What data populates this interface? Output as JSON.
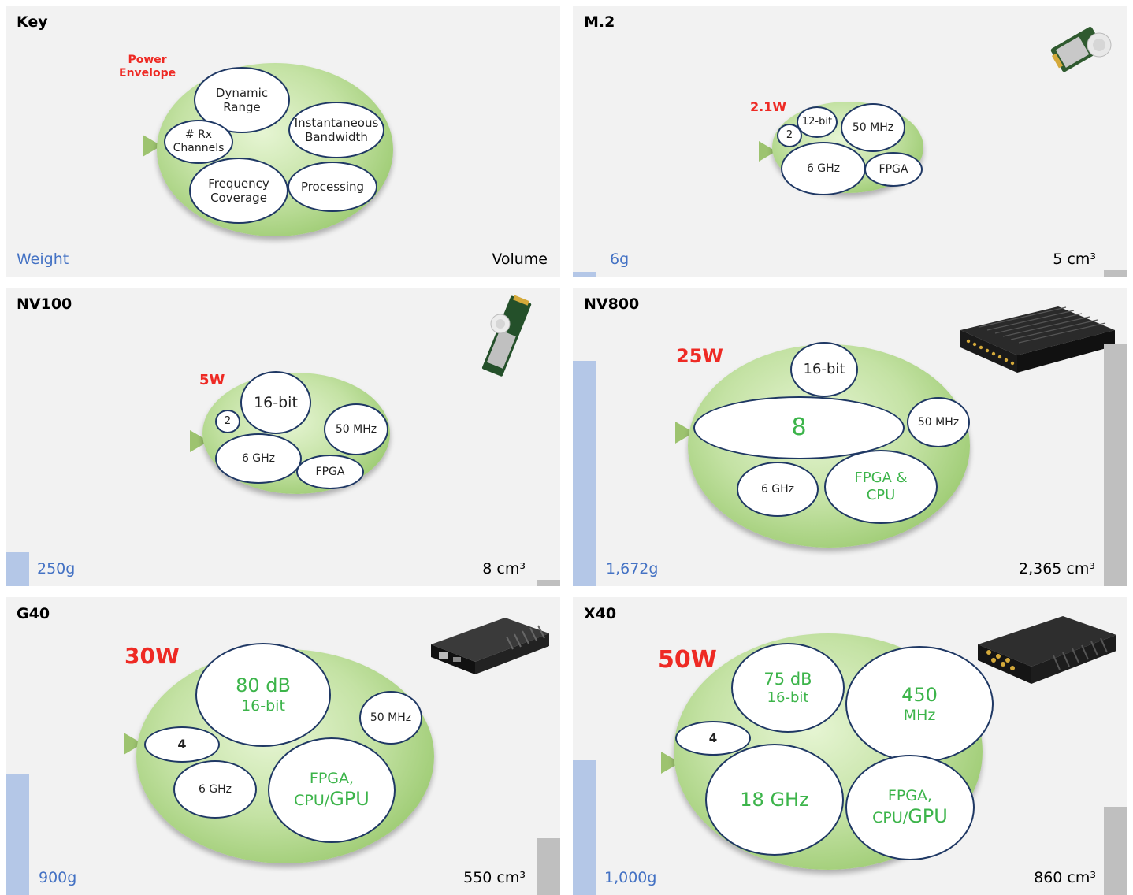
{
  "key": {
    "title": "Key",
    "power_line1": "Power",
    "power_line2": "Envelope",
    "dynamic_range": [
      "Dynamic",
      "Range"
    ],
    "instantaneous_bandwidth": [
      "Instantaneous",
      "Bandwidth"
    ],
    "rx_channels": [
      "# Rx",
      "Channels"
    ],
    "frequency_coverage": [
      "Frequency",
      "Coverage"
    ],
    "processing": "Processing",
    "weight_label": "Weight",
    "volume_label": "Volume"
  },
  "m2": {
    "title": "M.2",
    "power": "2.1W",
    "bits": "12-bit",
    "bandwidth": "50 MHz",
    "channels": "2",
    "frequency": "6 GHz",
    "processing": "FPGA",
    "weight": "6g",
    "volume": "5 cm³"
  },
  "nv100": {
    "title": "NV100",
    "power": "5W",
    "bits": "16-bit",
    "bandwidth": "50 MHz",
    "channels": "2",
    "frequency": "6 GHz",
    "processing": "FPGA",
    "weight": "250g",
    "volume": "8 cm³"
  },
  "nv800": {
    "title": "NV800",
    "power": "25W",
    "bits": "16-bit",
    "bandwidth": "50 MHz",
    "channels": "8",
    "frequency": "6 GHz",
    "processing": [
      "FPGA &",
      "CPU"
    ],
    "weight": "1,672g",
    "volume": "2,365 cm³"
  },
  "g40": {
    "title": "G40",
    "power": "30W",
    "dynamic_range": "80 dB",
    "bits": "16-bit",
    "bandwidth": "50 MHz",
    "channels": "4",
    "frequency": "6 GHz",
    "processing": [
      "FPGA,",
      "CPU/",
      "GPU"
    ],
    "weight": "900g",
    "volume": "550 cm³"
  },
  "x40": {
    "title": "X40",
    "power": "50W",
    "dynamic_range": "75 dB",
    "bits": "16-bit",
    "bandwidth": [
      "450",
      "MHz"
    ],
    "channels": "4",
    "frequency": "18 GHz",
    "processing": [
      "FPGA,",
      "CPU/",
      "GPU"
    ],
    "weight": "1,000g",
    "volume": "860 cm³"
  },
  "chart_data": {
    "type": "bar",
    "categories": [
      "M.2",
      "NV100",
      "NV800",
      "G40",
      "X40"
    ],
    "series": [
      {
        "name": "Weight",
        "values": [
          6,
          250,
          1672,
          900,
          1000
        ]
      },
      {
        "name": "Volume",
        "values": [
          5,
          8,
          2365,
          550,
          860
        ]
      }
    ]
  },
  "colors": {
    "power": "#ee2a24",
    "weight": "#4472c4",
    "weight_bar": "#b4c7e7",
    "volume_bar": "#bfbfbf",
    "highlight_text": "#3cb44a",
    "bubble_border": "#1f3864"
  }
}
